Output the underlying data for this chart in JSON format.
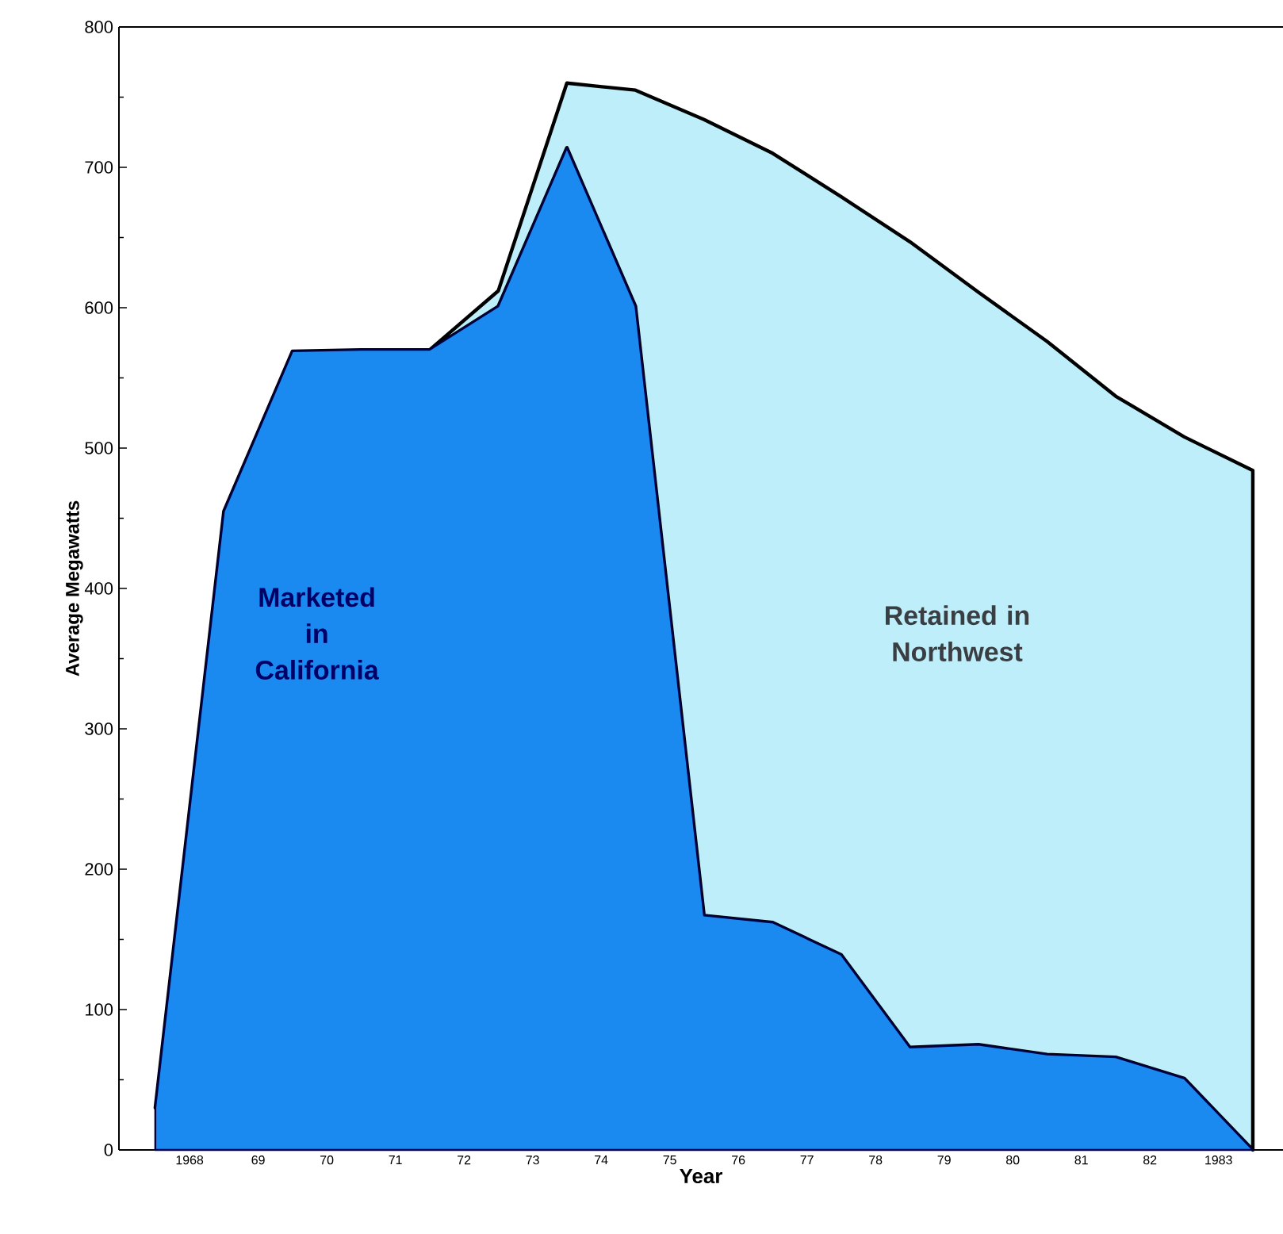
{
  "chart_data": {
    "type": "area",
    "stacked": true,
    "xlabel": "Year",
    "ylabel": "Average Megawatts",
    "x": [
      1967.5,
      1968.5,
      1969.5,
      1970.5,
      1971.5,
      1972.5,
      1973.5,
      1974.5,
      1975.5,
      1976.5,
      1977.5,
      1978.5,
      1979.5,
      1980.5,
      1981.5,
      1982.5,
      1983.5
    ],
    "series": [
      {
        "name": "Marketed in California",
        "color": "#1a8af0",
        "values": [
          30,
          455,
          569,
          570,
          570,
          601,
          714,
          601,
          167,
          162,
          139,
          73,
          75,
          68,
          66,
          51,
          0
        ]
      },
      {
        "name": "Retained in Northwest",
        "color": "#bdeefa",
        "values": [
          0,
          0,
          0,
          0,
          0,
          11,
          46,
          154,
          567,
          548,
          540,
          574,
          536,
          508,
          471,
          457,
          484
        ]
      }
    ],
    "xlim": [
      1966.97,
      1983.94
    ],
    "xticks": [
      {
        "value": 1967.5,
        "label": null
      },
      {
        "value": 1968.5,
        "label": null
      },
      {
        "value": 1969.5,
        "label": null
      },
      {
        "value": 1970.5,
        "label": null
      },
      {
        "value": 1971.5,
        "label": null
      },
      {
        "value": 1972.5,
        "label": null
      },
      {
        "value": 1973.5,
        "label": null
      },
      {
        "value": 1974.5,
        "label": null
      },
      {
        "value": 1975.5,
        "label": null
      },
      {
        "value": 1976.5,
        "label": null
      },
      {
        "value": 1977.5,
        "label": null
      },
      {
        "value": 1978.5,
        "label": null
      },
      {
        "value": 1979.5,
        "label": null
      },
      {
        "value": 1980.5,
        "label": null
      },
      {
        "value": 1981.5,
        "label": null
      },
      {
        "value": 1982.5,
        "label": null
      },
      {
        "value": 1983.5,
        "label": null
      },
      {
        "value": 1968,
        "label": "1968"
      },
      {
        "value": 1969,
        "label": "69"
      },
      {
        "value": 1970,
        "label": "70"
      },
      {
        "value": 1971,
        "label": "71"
      },
      {
        "value": 1972,
        "label": "72"
      },
      {
        "value": 1973,
        "label": "73"
      },
      {
        "value": 1974,
        "label": "74"
      },
      {
        "value": 1975,
        "label": "75"
      },
      {
        "value": 1976,
        "label": "76"
      },
      {
        "value": 1977,
        "label": "77"
      },
      {
        "value": 1978,
        "label": "78"
      },
      {
        "value": 1979,
        "label": "79"
      },
      {
        "value": 1980,
        "label": "80"
      },
      {
        "value": 1981,
        "label": "81"
      },
      {
        "value": 1982,
        "label": "82"
      },
      {
        "value": 1983,
        "label": "1983"
      }
    ],
    "ylim": [
      0,
      800
    ],
    "yticks": [
      0,
      100,
      200,
      300,
      400,
      500,
      600,
      700,
      800
    ]
  }
}
